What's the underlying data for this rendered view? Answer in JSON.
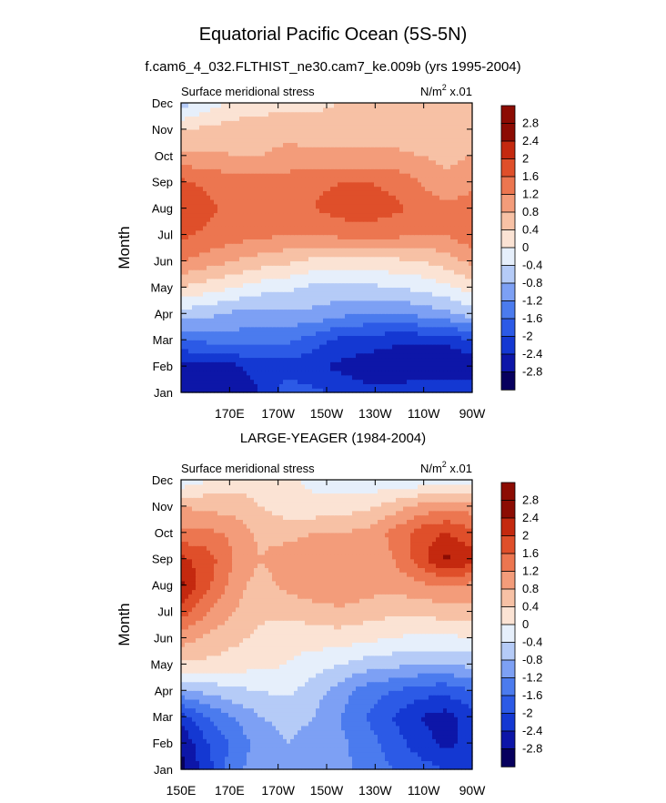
{
  "figure": {
    "title": "Equatorial Pacific Ocean (5S-5N)"
  },
  "chart_data": [
    {
      "type": "heatmap",
      "title": "f.cam6_4_032.FLTHIST_ne30.cam7_ke.009b (yrs 1995-2004)",
      "left_label": "Surface meridional stress",
      "units_label": "N/m",
      "units_sup": "2",
      "units_suffix": " x.01",
      "xlabel": "",
      "ylabel": "Month",
      "x_ticks": [
        "",
        "170E",
        "170W",
        "150W",
        "130W",
        "110W",
        "90W"
      ],
      "y_ticks": [
        "Jan",
        "Feb",
        "Mar",
        "Apr",
        "May",
        "Jun",
        "Jul",
        "Aug",
        "Sep",
        "Oct",
        "Nov",
        "Dec"
      ],
      "colorbar_labels": [
        "2.8",
        "2.4",
        "2",
        "1.6",
        "1.2",
        "0.8",
        "0.4",
        "0",
        "-0.4",
        "-0.8",
        "-1.2",
        "-1.6",
        "-2",
        "-2.4",
        "-2.8"
      ],
      "values": [
        [
          -2.5,
          -2.8,
          -2.7,
          -2.4,
          -1.8,
          -1.9,
          -2.1,
          -2.3,
          -2.3,
          -2.1,
          -2.0,
          -2.0
        ],
        [
          -2.6,
          -2.6,
          -2.5,
          -2.2,
          -2.2,
          -2.3,
          -2.5,
          -2.6,
          -2.7,
          -2.7,
          -2.8,
          -2.8
        ],
        [
          -1.6,
          -1.5,
          -1.4,
          -1.4,
          -1.5,
          -1.8,
          -2.1,
          -2.2,
          -2.3,
          -2.3,
          -2.3,
          -2.0
        ],
        [
          -0.6,
          -0.7,
          -0.9,
          -1.0,
          -0.9,
          -0.9,
          -1.1,
          -1.2,
          -1.2,
          -1.1,
          -0.9,
          -0.6
        ],
        [
          0.4,
          0.2,
          0.0,
          -0.2,
          -0.3,
          -0.5,
          -0.5,
          -0.5,
          -0.4,
          -0.3,
          -0.1,
          0.2
        ],
        [
          1.2,
          1.0,
          0.8,
          0.6,
          0.5,
          0.3,
          0.2,
          0.3,
          0.3,
          0.4,
          0.6,
          0.9
        ],
        [
          1.7,
          1.5,
          1.4,
          1.3,
          1.2,
          1.2,
          1.3,
          1.3,
          1.3,
          1.2,
          1.2,
          1.5
        ],
        [
          2.0,
          1.7,
          1.5,
          1.4,
          1.5,
          1.6,
          1.8,
          1.9,
          1.7,
          1.5,
          1.3,
          1.4
        ],
        [
          1.7,
          1.5,
          1.4,
          1.4,
          1.4,
          1.5,
          1.6,
          1.6,
          1.5,
          1.2,
          0.9,
          1.1
        ],
        [
          0.9,
          0.9,
          0.8,
          0.8,
          0.9,
          0.9,
          0.9,
          0.9,
          0.9,
          0.8,
          0.7,
          0.8
        ],
        [
          0.4,
          0.5,
          0.6,
          0.6,
          0.7,
          0.6,
          0.6,
          0.6,
          0.6,
          0.5,
          0.5,
          0.6
        ],
        [
          -0.6,
          -0.2,
          0.1,
          0.2,
          0.3,
          0.3,
          0.4,
          0.4,
          0.5,
          0.6,
          0.6,
          0.5
        ]
      ]
    },
    {
      "type": "heatmap",
      "title": "LARGE-YEAGER (1984-2004)",
      "left_label": "Surface meridional stress",
      "units_label": "N/m",
      "units_sup": "2",
      "units_suffix": " x.01",
      "xlabel": "",
      "ylabel": "Month",
      "x_ticks": [
        "150E",
        "170E",
        "170W",
        "150W",
        "130W",
        "110W",
        "90W"
      ],
      "y_ticks": [
        "Jan",
        "Feb",
        "Mar",
        "Apr",
        "May",
        "Jun",
        "Jul",
        "Aug",
        "Sep",
        "Oct",
        "Nov",
        "Dec"
      ],
      "colorbar_labels": [
        "2.8",
        "2.4",
        "2",
        "1.6",
        "1.2",
        "0.8",
        "0.4",
        "0",
        "-0.4",
        "-0.8",
        "-1.2",
        "-1.6",
        "-2",
        "-2.4",
        "-2.8"
      ],
      "values": [
        [
          -2.9,
          -2.2,
          -1.3,
          -1.0,
          -1.0,
          -1.0,
          -1.1,
          -1.3,
          -1.6,
          -1.8,
          -2.0,
          -2.1
        ],
        [
          -2.8,
          -2.0,
          -1.5,
          -1.0,
          -0.8,
          -0.9,
          -1.1,
          -1.4,
          -1.8,
          -2.2,
          -2.5,
          -2.3
        ],
        [
          -2.2,
          -1.6,
          -1.2,
          -0.8,
          -0.7,
          -0.8,
          -1.2,
          -1.6,
          -2.0,
          -2.4,
          -2.6,
          -2.2
        ],
        [
          -0.9,
          -0.7,
          -0.5,
          -0.4,
          -0.3,
          -0.6,
          -1.0,
          -1.4,
          -1.6,
          -1.8,
          -1.9,
          -1.6
        ],
        [
          0.3,
          0.3,
          0.2,
          0.1,
          0.0,
          -0.2,
          -0.4,
          -0.6,
          -0.7,
          -0.8,
          -0.8,
          -0.7
        ],
        [
          1.0,
          0.7,
          0.5,
          0.3,
          0.1,
          0.2,
          0.2,
          0.1,
          0.0,
          -0.1,
          -0.1,
          0.0
        ],
        [
          1.8,
          1.2,
          0.8,
          0.5,
          0.5,
          0.6,
          0.7,
          0.6,
          0.5,
          0.5,
          0.6,
          0.6
        ],
        [
          2.5,
          1.7,
          1.0,
          0.6,
          0.9,
          1.1,
          1.2,
          1.0,
          0.9,
          1.1,
          1.2,
          1.1
        ],
        [
          2.1,
          1.8,
          1.2,
          0.8,
          1.1,
          1.2,
          1.1,
          0.9,
          1.2,
          1.8,
          2.5,
          2.2
        ],
        [
          1.3,
          1.3,
          1.1,
          0.7,
          0.6,
          0.8,
          0.8,
          0.9,
          1.3,
          1.8,
          2.0,
          1.7
        ],
        [
          0.8,
          0.7,
          0.6,
          0.4,
          0.2,
          0.1,
          0.2,
          0.3,
          0.6,
          0.9,
          1.1,
          1.0
        ],
        [
          -0.3,
          0.0,
          0.2,
          0.3,
          0.1,
          -0.1,
          -0.2,
          -0.3,
          -0.3,
          -0.3,
          -0.3,
          -0.2
        ]
      ]
    }
  ],
  "colors": {
    "levels": [
      "#07005e",
      "#0d16a8",
      "#1438d2",
      "#2c5ae6",
      "#4b7bee",
      "#7da0f4",
      "#b5cbf7",
      "#e6effb",
      "#fbe3d4",
      "#f7c1a5",
      "#f39c7a",
      "#ec7650",
      "#df4f2a",
      "#c4290f",
      "#8c0c03"
    ]
  }
}
